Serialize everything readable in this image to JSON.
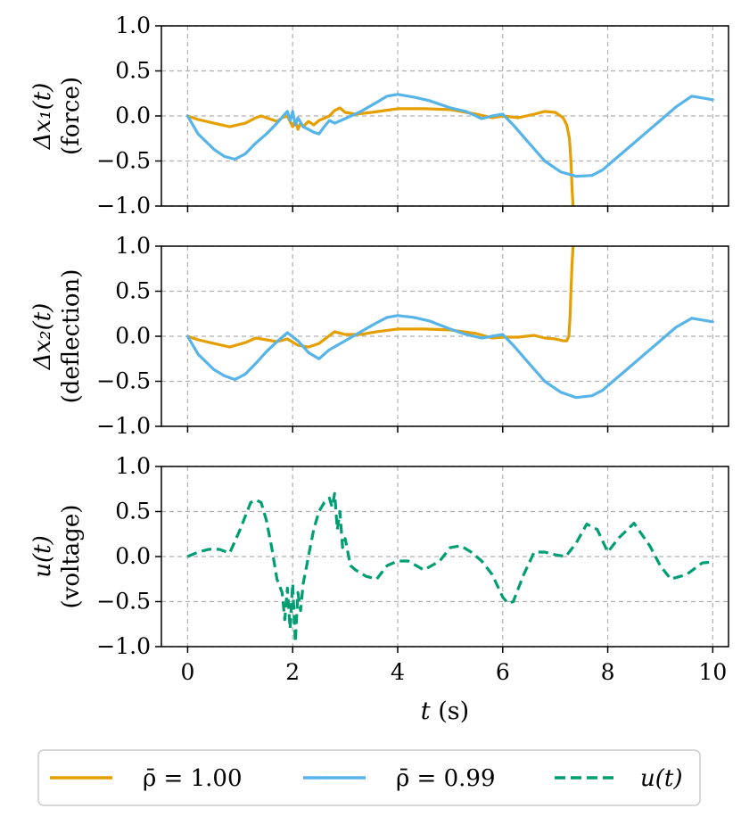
{
  "chart_data": {
    "type": "line",
    "xlabel_var": "t",
    "xlabel_unit": "(s)",
    "xlim": [
      -0.5,
      10.3
    ],
    "xticks": [
      0,
      2,
      4,
      6,
      8,
      10
    ],
    "xtick_labels": [
      "0",
      "2",
      "4",
      "6",
      "8",
      "10"
    ],
    "grid": true,
    "legend_position": "bottom-center",
    "legend": [
      {
        "key": "rho100",
        "text": "ρ̄ = 1.00",
        "color": "#E69F00",
        "style": "solid"
      },
      {
        "key": "rho099",
        "text": "ρ̄ = 0.99",
        "color": "#56B4E9",
        "style": "solid"
      },
      {
        "key": "u",
        "text": "u(t)",
        "color": "#009E73",
        "style": "dashed"
      }
    ],
    "panels": [
      {
        "name": "force",
        "ylabel_main": "Δx₁(t)",
        "ylabel_sub": "(force)",
        "ylim": [
          -1.0,
          1.0
        ],
        "yticks": [
          1.0,
          0.5,
          0.0,
          -0.5,
          -1.0
        ],
        "ytick_labels": [
          "1.0",
          "0.5",
          "0.0",
          "−0.5",
          "−1.0"
        ],
        "series": [
          {
            "name": "ρ̄ = 1.00",
            "color": "#E69F00",
            "style": "solid",
            "x": [
              0,
              0.2,
              0.5,
              0.8,
              1.1,
              1.3,
              1.4,
              1.55,
              1.7,
              1.8,
              1.9,
              2.0,
              2.05,
              2.1,
              2.15,
              2.2,
              2.3,
              2.4,
              2.5,
              2.7,
              2.8,
              2.9,
              3.0,
              3.2,
              3.5,
              4.0,
              4.5,
              5.0,
              5.5,
              5.8,
              6.0,
              6.3,
              6.6,
              6.8,
              7.0,
              7.15,
              7.22,
              7.27,
              7.3,
              7.32,
              7.34
            ],
            "y": [
              0,
              -0.04,
              -0.08,
              -0.12,
              -0.08,
              -0.02,
              0.0,
              -0.03,
              -0.06,
              -0.02,
              0.0,
              -0.12,
              -0.05,
              -0.15,
              -0.08,
              -0.12,
              -0.06,
              -0.1,
              -0.05,
              0.0,
              0.06,
              0.09,
              0.04,
              0.02,
              0.04,
              0.08,
              0.08,
              0.07,
              0.02,
              -0.02,
              0.0,
              -0.02,
              0.02,
              0.05,
              0.04,
              -0.02,
              -0.1,
              -0.25,
              -0.5,
              -0.8,
              -1.0
            ]
          },
          {
            "name": "ρ̄ = 0.99",
            "color": "#56B4E9",
            "style": "solid",
            "x": [
              0,
              0.2,
              0.5,
              0.7,
              0.9,
              1.1,
              1.3,
              1.5,
              1.7,
              1.85,
              1.9,
              1.95,
              2.0,
              2.05,
              2.1,
              2.2,
              2.3,
              2.4,
              2.5,
              2.6,
              2.7,
              2.8,
              3.0,
              3.3,
              3.6,
              3.8,
              4.0,
              4.3,
              4.6,
              5.0,
              5.3,
              5.6,
              5.8,
              6.0,
              6.2,
              6.5,
              6.8,
              7.1,
              7.4,
              7.7,
              7.9,
              8.1,
              8.4,
              8.7,
              9.0,
              9.3,
              9.6,
              10.0
            ],
            "y": [
              0,
              -0.2,
              -0.37,
              -0.45,
              -0.48,
              -0.42,
              -0.3,
              -0.2,
              -0.08,
              0.02,
              0.05,
              -0.05,
              0.05,
              -0.1,
              -0.02,
              -0.12,
              -0.15,
              -0.18,
              -0.2,
              -0.12,
              -0.05,
              -0.08,
              -0.03,
              0.05,
              0.15,
              0.22,
              0.24,
              0.21,
              0.17,
              0.09,
              0.05,
              -0.03,
              0.0,
              0.02,
              -0.1,
              -0.3,
              -0.5,
              -0.62,
              -0.67,
              -0.66,
              -0.6,
              -0.5,
              -0.35,
              -0.2,
              -0.05,
              0.1,
              0.22,
              0.18
            ]
          }
        ]
      },
      {
        "name": "deflection",
        "ylabel_main": "Δx₂(t)",
        "ylabel_sub": "(deflection)",
        "ylim": [
          -1.0,
          1.0
        ],
        "yticks": [
          1.0,
          0.5,
          0.0,
          -0.5,
          -1.0
        ],
        "ytick_labels": [
          "1.0",
          "0.5",
          "0.0",
          "−0.5",
          "−1.0"
        ],
        "series": [
          {
            "name": "ρ̄ = 1.00",
            "color": "#E69F00",
            "style": "solid",
            "x": [
              0,
              0.2,
              0.5,
              0.8,
              1.1,
              1.3,
              1.5,
              1.7,
              1.9,
              2.1,
              2.3,
              2.5,
              2.8,
              3.0,
              3.3,
              3.6,
              4.0,
              4.5,
              5.0,
              5.5,
              5.8,
              6.0,
              6.3,
              6.6,
              6.8,
              7.0,
              7.15,
              7.22,
              7.26,
              7.28,
              7.3,
              7.32,
              7.34
            ],
            "y": [
              0,
              -0.04,
              -0.08,
              -0.12,
              -0.07,
              -0.02,
              -0.04,
              -0.06,
              -0.03,
              -0.1,
              -0.12,
              -0.08,
              0.05,
              0.02,
              0.02,
              0.05,
              0.08,
              0.08,
              0.07,
              0.03,
              -0.02,
              -0.01,
              -0.01,
              0.01,
              -0.02,
              -0.03,
              -0.05,
              -0.05,
              0.0,
              0.2,
              0.5,
              0.8,
              1.0
            ]
          },
          {
            "name": "ρ̄ = 0.99",
            "color": "#56B4E9",
            "style": "solid",
            "x": [
              0,
              0.2,
              0.5,
              0.7,
              0.9,
              1.1,
              1.3,
              1.5,
              1.7,
              1.9,
              2.1,
              2.3,
              2.5,
              2.7,
              3.0,
              3.3,
              3.6,
              3.8,
              4.0,
              4.3,
              4.6,
              5.0,
              5.3,
              5.6,
              5.8,
              6.0,
              6.2,
              6.5,
              6.8,
              7.1,
              7.4,
              7.7,
              7.9,
              8.1,
              8.4,
              8.7,
              9.0,
              9.3,
              9.6,
              10.0
            ],
            "y": [
              0,
              -0.2,
              -0.37,
              -0.44,
              -0.48,
              -0.42,
              -0.3,
              -0.17,
              -0.06,
              0.04,
              -0.05,
              -0.18,
              -0.25,
              -0.15,
              -0.05,
              0.05,
              0.15,
              0.21,
              0.23,
              0.21,
              0.17,
              0.08,
              0.02,
              -0.02,
              0.0,
              0.02,
              -0.1,
              -0.3,
              -0.5,
              -0.62,
              -0.68,
              -0.66,
              -0.6,
              -0.5,
              -0.35,
              -0.2,
              -0.05,
              0.1,
              0.2,
              0.16
            ]
          }
        ]
      },
      {
        "name": "voltage",
        "ylabel_main": "u(t)",
        "ylabel_sub": "(voltage)",
        "ylim": [
          -1.0,
          1.0
        ],
        "yticks": [
          1.0,
          0.5,
          0.0,
          -0.5,
          -1.0
        ],
        "ytick_labels": [
          "1.0",
          "0.5",
          "0.0",
          "−0.5",
          "−1.0"
        ],
        "series": [
          {
            "name": "u(t)",
            "color": "#009E73",
            "style": "dashed",
            "x": [
              0,
              0.2,
              0.4,
              0.6,
              0.8,
              1.0,
              1.2,
              1.3,
              1.4,
              1.5,
              1.6,
              1.7,
              1.8,
              1.85,
              1.9,
              1.95,
              2.0,
              2.05,
              2.1,
              2.15,
              2.2,
              2.3,
              2.4,
              2.5,
              2.6,
              2.7,
              2.75,
              2.8,
              2.85,
              2.9,
              2.95,
              3.0,
              3.1,
              3.2,
              3.4,
              3.6,
              3.8,
              4.0,
              4.2,
              4.5,
              4.8,
              5.0,
              5.2,
              5.4,
              5.6,
              5.8,
              6.0,
              6.1,
              6.2,
              6.4,
              6.6,
              6.8,
              7.0,
              7.2,
              7.4,
              7.6,
              7.8,
              8.0,
              8.2,
              8.5,
              8.8,
              9.0,
              9.2,
              9.5,
              9.8,
              10.0
            ],
            "y": [
              0,
              0.05,
              0.08,
              0.08,
              0.04,
              0.3,
              0.6,
              0.63,
              0.6,
              0.4,
              0.1,
              -0.25,
              -0.4,
              -0.7,
              -0.35,
              -0.8,
              -0.3,
              -0.95,
              -0.4,
              -0.6,
              -0.3,
              0.0,
              0.3,
              0.5,
              0.6,
              0.65,
              0.55,
              0.7,
              0.3,
              0.5,
              0.1,
              0.2,
              -0.1,
              -0.15,
              -0.22,
              -0.25,
              -0.1,
              -0.05,
              -0.05,
              -0.15,
              -0.05,
              0.1,
              0.12,
              0.05,
              -0.05,
              -0.2,
              -0.45,
              -0.52,
              -0.5,
              -0.2,
              0.05,
              0.05,
              0.02,
              0.0,
              0.15,
              0.36,
              0.3,
              0.05,
              0.2,
              0.37,
              0.12,
              -0.1,
              -0.25,
              -0.2,
              -0.07,
              -0.06
            ]
          }
        ]
      }
    ]
  }
}
